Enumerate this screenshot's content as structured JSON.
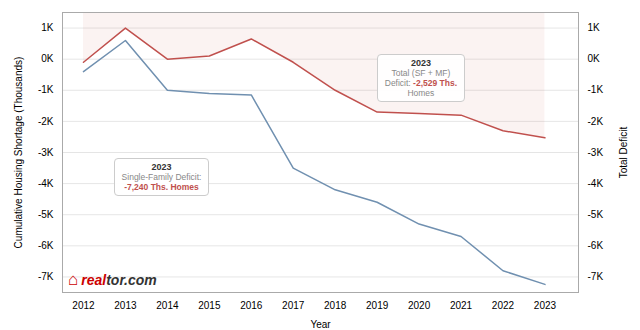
{
  "chart_data": {
    "type": "line",
    "xlabel": "Year",
    "ylabel": "Cumulative Housing Shortage (Thousands)",
    "y2label": "Total Deficit",
    "x": [
      2012,
      2013,
      2014,
      2015,
      2016,
      2017,
      2018,
      2019,
      2020,
      2021,
      2022,
      2023
    ],
    "series": [
      {
        "color": "#7090b0",
        "values": [
          -400,
          600,
          -1000,
          -1100,
          -1150,
          -3500,
          -4200,
          -4600,
          -5300,
          -5700,
          -6800,
          -7240
        ]
      },
      {
        "color": "#c0504d",
        "values": [
          -100,
          1000,
          0,
          100,
          650,
          -100,
          -1000,
          -1700,
          -1750,
          -1800,
          -2300,
          -2529
        ]
      }
    ],
    "xlim": [
      2011.5,
      2023.8
    ],
    "xticks": [
      2012,
      2013,
      2014,
      2015,
      2016,
      2017,
      2018,
      2019,
      2020,
      2021,
      2022,
      2023
    ],
    "ylim": [
      -7500,
      1500
    ],
    "yticks": [
      {
        "value": 1000,
        "label": "1K"
      },
      {
        "value": 0,
        "label": "0K"
      },
      {
        "value": -1000,
        "label": "-1K"
      },
      {
        "value": -2000,
        "label": "-2K"
      },
      {
        "value": -3000,
        "label": "-3K"
      },
      {
        "value": -4000,
        "label": "-4K"
      },
      {
        "value": -5000,
        "label": "-5K"
      },
      {
        "value": -6000,
        "label": "-6K"
      },
      {
        "value": -7000,
        "label": "-7K"
      }
    ],
    "y2lim": [
      -7500,
      1500
    ],
    "y2ticks": [
      {
        "value": 1000,
        "label": "1K"
      },
      {
        "value": 0,
        "label": "0K"
      },
      {
        "value": -1000,
        "label": "-1K"
      },
      {
        "value": -2000,
        "label": "-2K"
      },
      {
        "value": -3000,
        "label": "-3K"
      },
      {
        "value": -4000,
        "label": "-4K"
      },
      {
        "value": -5000,
        "label": "-5K"
      },
      {
        "value": -6000,
        "label": "-6K"
      },
      {
        "value": -7000,
        "label": "-7K"
      }
    ],
    "grid": true,
    "annotations": [
      {
        "lines": [
          [
            {
              "text": "2023"
            }
          ],
          [
            {
              "text": "Total (SF + MF)"
            }
          ],
          [
            {
              "text": "Deficit: "
            },
            {
              "text": "-2,529 Ths.",
              "color": "#c0504d"
            }
          ],
          [
            {
              "text": "Homes"
            }
          ]
        ]
      },
      {
        "lines": [
          [
            {
              "text": "2023"
            }
          ],
          [
            {
              "text": "Single-Family Deficit:"
            }
          ],
          [
            {
              "text": "-7,240 Ths. Homes",
              "color": "#c0504d"
            }
          ]
        ]
      },
      {
        "lines": [
          [
            {
              "text": "⌂",
              "color": "#cc0000"
            },
            {
              "text": "real",
              "color": "#cc0000"
            },
            {
              "text": "tor.com"
            }
          ]
        ]
      }
    ]
  }
}
